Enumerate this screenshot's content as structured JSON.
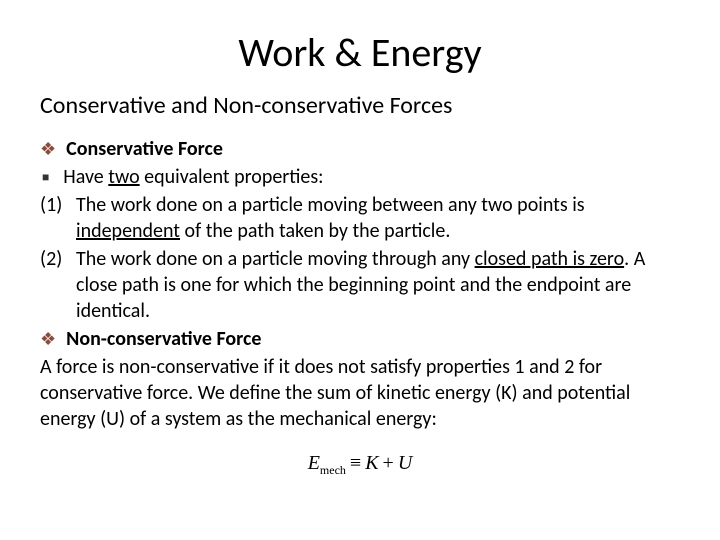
{
  "title": "Work & Energy",
  "subtitle": "Conservative and Non-conservative Forces",
  "section1": {
    "heading": "Conservative Force",
    "intro_before": "Have ",
    "intro_underline": "two",
    "intro_after": " equivalent properties:",
    "item1_num": "(1)",
    "item1_before": "The work done on a particle moving between any two points is ",
    "item1_underline": "independent",
    "item1_after": " of the path taken by the particle.",
    "item2_num": "(2)",
    "item2_before": "The work done on a particle moving through any ",
    "item2_underline": "closed path is zero",
    "item2_after": ". A close path is one for which the beginning point and the endpoint are identical."
  },
  "section2": {
    "heading": "Non-conservative Force",
    "para": "A force is non-conservative if it does not satisfy properties 1 and 2 for conservative force. We define the sum of kinetic energy (K) and potential energy (U)  of a system as the mechanical energy:"
  },
  "equation": {
    "lhs": "E",
    "sub": "mech",
    "equiv": "≡",
    "k": "K",
    "plus": "+",
    "u": "U"
  },
  "colors": {
    "diamond": "#8b4a3a",
    "text": "#000000",
    "background": "#ffffff"
  }
}
